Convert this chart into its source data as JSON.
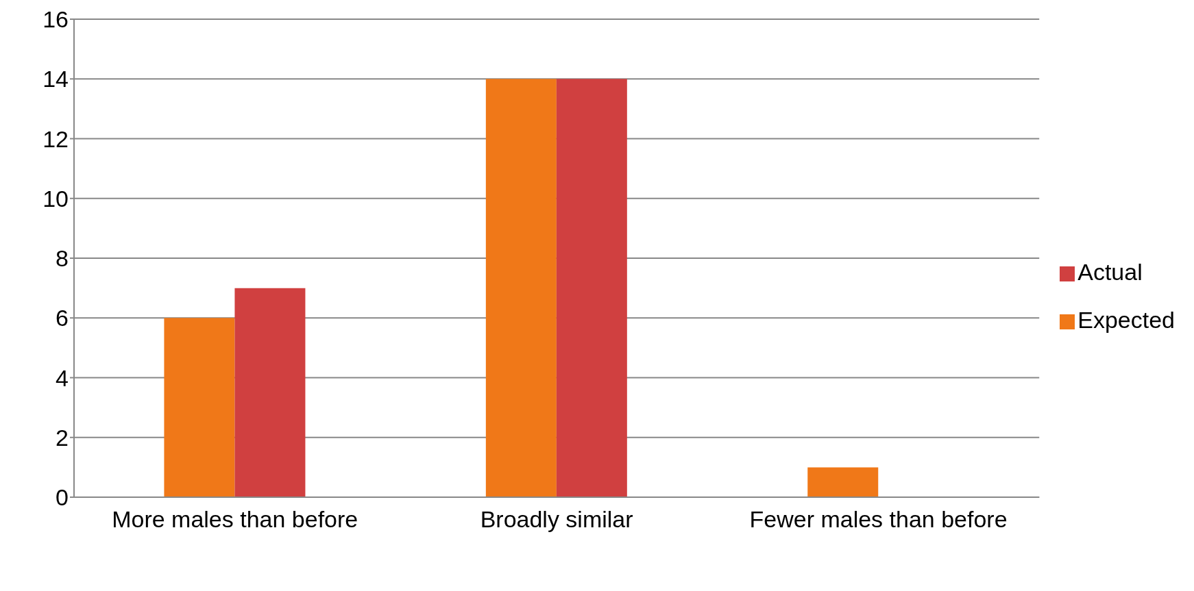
{
  "chart_data": {
    "type": "bar",
    "categories": [
      "More males than before",
      "Broadly similar",
      "Fewer males than before"
    ],
    "series": [
      {
        "name": "Expected",
        "color": "#f07818",
        "values": [
          6,
          14,
          1
        ]
      },
      {
        "name": "Actual",
        "color": "#d04040",
        "values": [
          7,
          14,
          0
        ]
      }
    ],
    "ylim": [
      0,
      16
    ],
    "yticks": [
      0,
      2,
      4,
      6,
      8,
      10,
      12,
      14,
      16
    ],
    "grid": "y",
    "legend": "right"
  }
}
